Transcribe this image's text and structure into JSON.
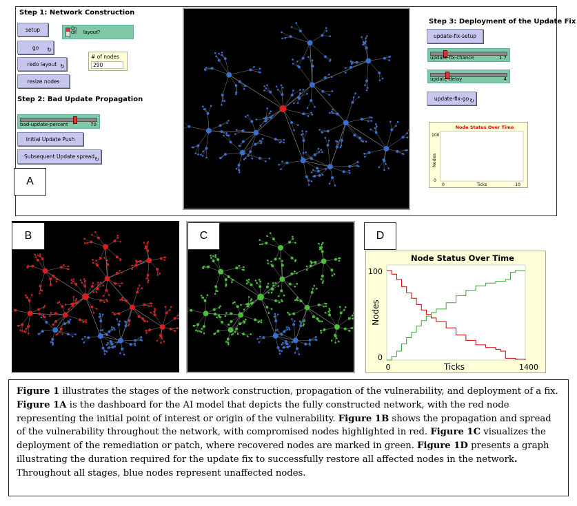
{
  "panel_a": {
    "step1_title": "Step 1: Network Construction",
    "step2_title": "Step 2: Bad Update Propagation",
    "step3_title": "Step 3: Deployment of the Update Fix",
    "setup_label": "setup",
    "go_label": "go",
    "redo_layout_label": "redo layout",
    "resize_nodes_label": "resize nodes",
    "layout_switch": {
      "on_label": "On",
      "off_label": "Off",
      "label": "layout?"
    },
    "num_nodes": {
      "label": "# of nodes",
      "value": "290"
    },
    "bad_update_slider": {
      "label": "bad-update-percent",
      "value": "70",
      "fraction": 0.7
    },
    "initial_push_label": "Initial Update Push",
    "subsequent_spread_label": "Subsequent Update spread",
    "update_fix_setup_label": "update-fix-setup",
    "fix_chance_slider": {
      "label": "update-fix-chance",
      "value": "1.7",
      "fraction": 0.17
    },
    "delay_slider": {
      "label": "update-delay",
      "value": "4",
      "fraction": 0.2
    },
    "update_fix_go_label": "update-fix-go",
    "mini_plot": {
      "title": "Node Status Over Time",
      "ylabel": "Nodes",
      "xlabel": "Ticks",
      "y_top": "100",
      "y_bottom": "0",
      "x_left": "0",
      "x_right": "10"
    },
    "tag": "A"
  },
  "panel_b": {
    "tag": "B"
  },
  "panel_c": {
    "tag": "C"
  },
  "panel_d": {
    "tag": "D"
  },
  "chart_data": {
    "type": "line",
    "title": "Node Status Over Time",
    "xlabel": "Ticks",
    "ylabel": "Nodes",
    "xlim": [
      0,
      1400
    ],
    "ylim": [
      0,
      100
    ],
    "x_ticks": [
      "0",
      "1400"
    ],
    "y_ticks": [
      "0",
      "100"
    ],
    "series": [
      {
        "color": "#cc0000",
        "x": [
          0,
          50,
          100,
          150,
          200,
          250,
          300,
          350,
          400,
          450,
          500,
          600,
          700,
          800,
          900,
          1000,
          1100,
          1150,
          1200,
          1300,
          1400
        ],
        "y": [
          100,
          96,
          90,
          82,
          75,
          69,
          62,
          56,
          51,
          47,
          43,
          36,
          28,
          22,
          17,
          14,
          12,
          10,
          2,
          1,
          0
        ]
      },
      {
        "color": "#33aa33",
        "x": [
          0,
          50,
          100,
          150,
          200,
          250,
          300,
          350,
          400,
          450,
          500,
          600,
          700,
          800,
          900,
          1000,
          1100,
          1200,
          1250,
          1300,
          1400
        ],
        "y": [
          0,
          4,
          10,
          18,
          25,
          31,
          38,
          44,
          49,
          53,
          57,
          64,
          72,
          78,
          83,
          86,
          88,
          90,
          98,
          100,
          100
        ]
      }
    ]
  },
  "caption": {
    "p1_bold": "Figure 1",
    "p1": " illustrates the stages of the network construction, propagation of the vulnerability, and deployment of a fix. ",
    "p2_bold": "Figure 1A",
    "p2": " is the dashboard for the AI model that depicts the fully constructed network, with the red node representing the initial point of interest or origin of the vulnerability. ",
    "p3_bold": "Figure 1B",
    "p3": " shows the propagation and spread of the vulnerability throughout the network, with compromised nodes highlighted in red. ",
    "p4_bold": "Figure 1C",
    "p4": " visualizes the deployment of the remediation or patch, where recovered nodes are marked in green. ",
    "p5_bold": "Figure 1D",
    "p5": " presents a graph illustrating the duration required for the update fix to successfully restore all affected nodes in the network",
    "p6_bold": ".",
    "p6": " Throughout all stages, blue nodes represent unaffected nodes."
  },
  "colors": {
    "unaffected": "#3a6fcf",
    "compromised": "#d42020",
    "recovered": "#4bbf3a",
    "origin": "#e02020"
  }
}
